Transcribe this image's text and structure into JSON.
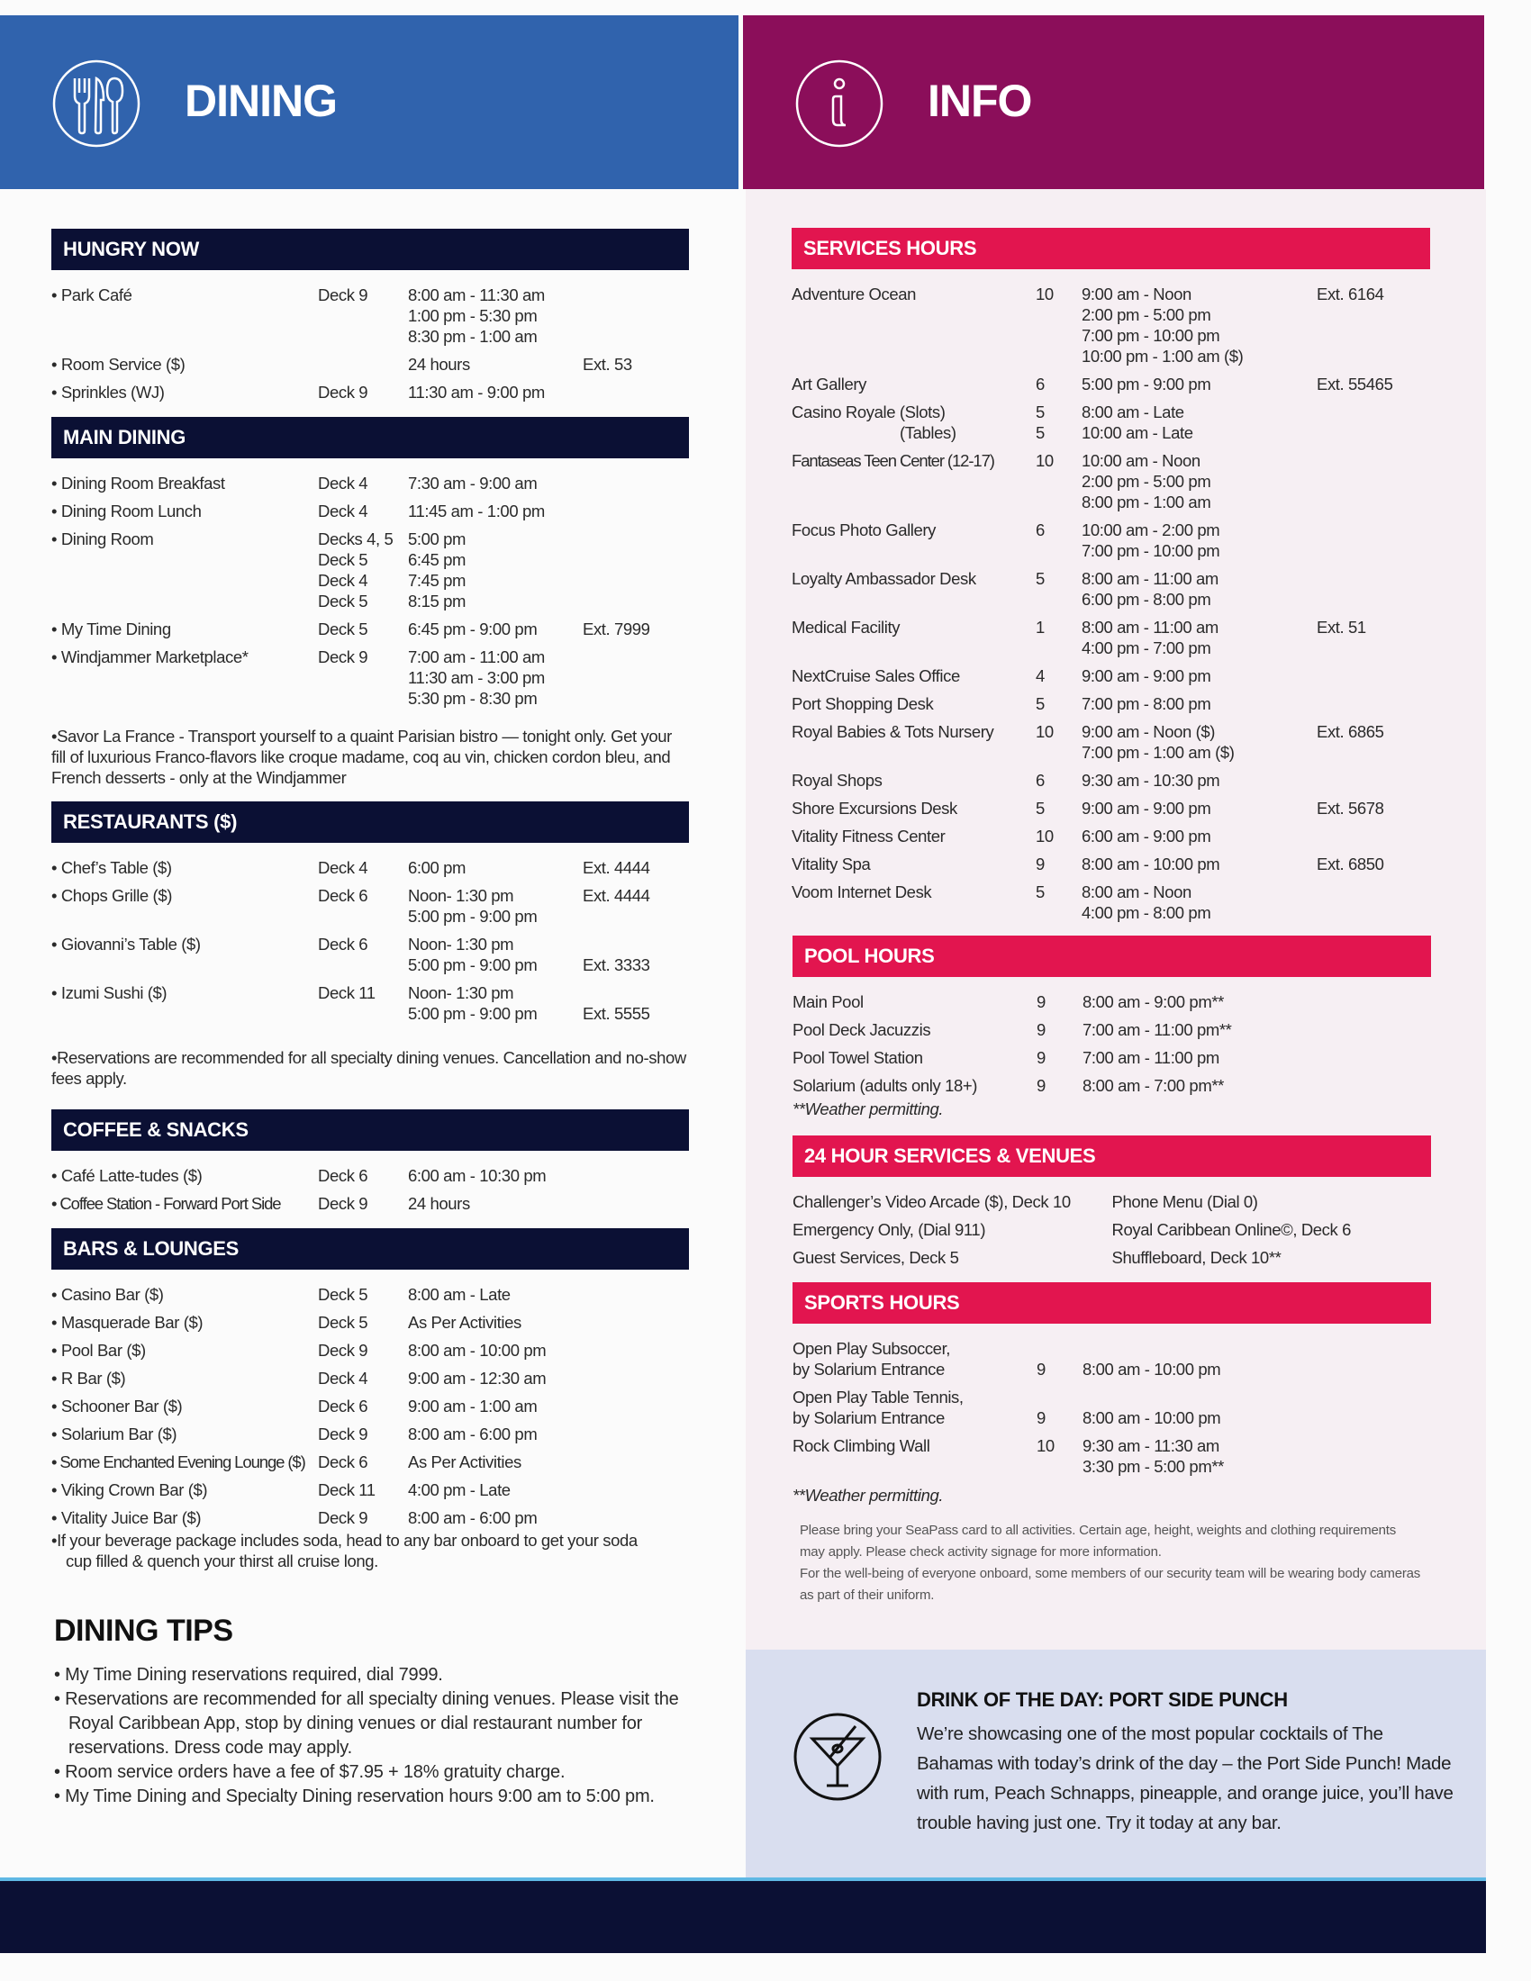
{
  "colors": {
    "dining_header": "#3063ad",
    "info_header": "#8b0e5a",
    "dining_bars": "#0b1034",
    "info_bars": "#e2154f",
    "drink_box": "#d9deef"
  },
  "dining": {
    "title": "DINING",
    "icon": "fork-knife-spoon-icon",
    "hungry_now": {
      "title": "HUNGRY NOW",
      "rows": [
        {
          "name": [
            "Park Café"
          ],
          "deck": [
            "Deck 9"
          ],
          "times": [
            "8:00 am - 11:30 am",
            "1:00 pm - 5:30 pm",
            "8:30 pm - 1:00 am"
          ],
          "ext": []
        },
        {
          "name": [
            "Room Service ($)"
          ],
          "deck": [],
          "times": [
            "24 hours"
          ],
          "ext": [
            "Ext. 53"
          ]
        },
        {
          "name": [
            "Sprinkles (WJ)"
          ],
          "deck": [
            "Deck 9"
          ],
          "times": [
            "11:30 am - 9:00 pm"
          ],
          "ext": []
        }
      ]
    },
    "main_dining": {
      "title": "MAIN DINING",
      "rows": [
        {
          "name": [
            "Dining Room Breakfast"
          ],
          "deck": [
            "Deck 4"
          ],
          "times": [
            "7:30 am - 9:00 am"
          ],
          "ext": []
        },
        {
          "name": [
            "Dining Room Lunch"
          ],
          "deck": [
            "Deck 4"
          ],
          "times": [
            "11:45 am - 1:00 pm"
          ],
          "ext": []
        },
        {
          "name": [
            "Dining Room"
          ],
          "deck": [
            "Decks 4, 5",
            "Deck 5",
            "Deck 4",
            "Deck 5"
          ],
          "times": [
            "5:00 pm",
            "6:45 pm",
            "7:45 pm",
            "8:15 pm"
          ],
          "ext": []
        },
        {
          "name": [
            "My Time Dining"
          ],
          "deck": [
            "Deck 5"
          ],
          "times": [
            "6:45 pm - 9:00 pm"
          ],
          "ext": [
            "Ext. 7999"
          ]
        },
        {
          "name": [
            "Windjammer Marketplace*"
          ],
          "deck": [
            "Deck 9"
          ],
          "times": [
            "7:00 am - 11:00 am",
            "11:30 am - 3:00 pm",
            "5:30 pm - 8:30 pm"
          ],
          "ext": []
        }
      ],
      "note": "Savor La France - Transport yourself to a quaint Parisian bistro — tonight only. Get your fill of luxurious Franco-flavors like croque madame, coq au vin, chicken cordon bleu, and French desserts - only at the Windjammer"
    },
    "restaurants": {
      "title": "RESTAURANTS ($)",
      "rows": [
        {
          "name": [
            "Chef’s Table ($)"
          ],
          "deck": [
            "Deck 4"
          ],
          "times": [
            "6:00 pm"
          ],
          "ext": [
            "Ext. 4444"
          ]
        },
        {
          "name": [
            "Chops Grille ($)"
          ],
          "deck": [
            "Deck 6"
          ],
          "times": [
            "Noon- 1:30 pm",
            "5:00 pm - 9:00 pm"
          ],
          "ext": [
            "Ext. 4444"
          ]
        },
        {
          "name": [
            "Giovanni’s Table ($)"
          ],
          "deck": [
            "Deck 6"
          ],
          "times": [
            "Noon- 1:30 pm",
            "5:00 pm - 9:00 pm"
          ],
          "ext": [
            "",
            "Ext. 3333"
          ]
        },
        {
          "name": [
            "Izumi Sushi ($)"
          ],
          "deck": [
            "Deck 11"
          ],
          "times": [
            "Noon- 1:30 pm",
            "5:00 pm - 9:00 pm"
          ],
          "ext": [
            "",
            "Ext. 5555"
          ]
        }
      ],
      "note": "Reservations are recommended for all specialty dining venues. Cancellation and no-show fees apply."
    },
    "coffee": {
      "title": "COFFEE & SNACKS",
      "rows": [
        {
          "name": [
            "Café Latte-tudes ($)"
          ],
          "deck": [
            "Deck 6"
          ],
          "times": [
            "6:00 am - 10:30 pm"
          ],
          "ext": []
        },
        {
          "name": [
            "Coffee Station - Forward Port Side"
          ],
          "deck": [
            "Deck 9"
          ],
          "times": [
            "24 hours"
          ],
          "ext": []
        }
      ]
    },
    "bars": {
      "title": "BARS & LOUNGES",
      "rows": [
        {
          "name": [
            "Casino Bar ($)"
          ],
          "deck": [
            "Deck 5"
          ],
          "times": [
            "8:00 am - Late"
          ],
          "ext": []
        },
        {
          "name": [
            "Masquerade Bar ($)"
          ],
          "deck": [
            "Deck 5"
          ],
          "times": [
            "As Per Activities"
          ],
          "ext": []
        },
        {
          "name": [
            "Pool Bar ($)"
          ],
          "deck": [
            "Deck 9"
          ],
          "times": [
            "8:00 am - 10:00 pm"
          ],
          "ext": []
        },
        {
          "name": [
            "R Bar ($)"
          ],
          "deck": [
            "Deck 4"
          ],
          "times": [
            "9:00 am - 12:30 am"
          ],
          "ext": []
        },
        {
          "name": [
            "Schooner Bar ($)"
          ],
          "deck": [
            "Deck 6"
          ],
          "times": [
            "9:00 am - 1:00 am"
          ],
          "ext": []
        },
        {
          "name": [
            "Solarium Bar ($)"
          ],
          "deck": [
            "Deck 9"
          ],
          "times": [
            "8:00 am - 6:00 pm"
          ],
          "ext": []
        },
        {
          "name": [
            "Some Enchanted Evening Lounge ($)"
          ],
          "deck": [
            "Deck 6"
          ],
          "times": [
            "As Per Activities"
          ],
          "ext": []
        },
        {
          "name": [
            "Viking Crown Bar ($)"
          ],
          "deck": [
            "Deck 11"
          ],
          "times": [
            "4:00 pm - Late"
          ],
          "ext": []
        },
        {
          "name": [
            "Vitality Juice Bar ($)"
          ],
          "deck": [
            "Deck 9"
          ],
          "times": [
            "8:00 am - 6:00 pm"
          ],
          "ext": []
        }
      ],
      "note": "If your beverage package includes soda, head to any bar onboard to get your soda cup filled & quench your thirst all cruise long."
    },
    "tips": {
      "title": "DINING TIPS",
      "items": [
        "My Time Dining reservations required, dial 7999.",
        "Reservations are recommended for all specialty dining venues. Please visit the Royal Caribbean App, stop by dining venues or dial restaurant number for reservations. Dress code may apply.",
        "Room service orders have a fee of $7.95 + 18% gratuity charge.",
        "My Time Dining and Specialty Dining reservation hours 9:00 am to 5:00 pm."
      ]
    }
  },
  "info": {
    "title": "INFO",
    "icon": "info-icon",
    "services": {
      "title": "SERVICES HOURS",
      "rows": [
        {
          "name": [
            "Adventure Ocean"
          ],
          "deck": [
            "10"
          ],
          "times": [
            "9:00 am - Noon",
            "2:00 pm - 5:00 pm",
            "7:00 pm - 10:00 pm",
            "10:00 pm - 1:00 am ($)"
          ],
          "ext": [
            "Ext. 6164"
          ]
        },
        {
          "name": [
            "Art Gallery"
          ],
          "deck": [
            "6"
          ],
          "times": [
            "5:00 pm - 9:00 pm"
          ],
          "ext": [
            "Ext. 55465"
          ]
        },
        {
          "name": [
            "Casino Royale (Slots)",
            "(Tables)"
          ],
          "deck": [
            "5",
            "5"
          ],
          "times": [
            "8:00 am - Late",
            "10:00 am - Late"
          ],
          "ext": []
        },
        {
          "name": [
            "Fantaseas Teen Center (12-17)"
          ],
          "deck": [
            "10"
          ],
          "times": [
            "10:00 am - Noon",
            "2:00 pm - 5:00 pm",
            "8:00 pm - 1:00 am"
          ],
          "ext": []
        },
        {
          "name": [
            "Focus Photo Gallery"
          ],
          "deck": [
            "6"
          ],
          "times": [
            "10:00 am - 2:00 pm",
            "7:00 pm - 10:00 pm"
          ],
          "ext": []
        },
        {
          "name": [
            "Loyalty Ambassador Desk"
          ],
          "deck": [
            "5"
          ],
          "times": [
            "8:00 am - 11:00 am",
            "6:00 pm - 8:00 pm"
          ],
          "ext": []
        },
        {
          "name": [
            "Medical Facility"
          ],
          "deck": [
            "1"
          ],
          "times": [
            "8:00 am - 11:00 am",
            "4:00 pm - 7:00 pm"
          ],
          "ext": [
            "Ext. 51"
          ]
        },
        {
          "name": [
            "NextCruise Sales Office"
          ],
          "deck": [
            "4"
          ],
          "times": [
            "9:00 am - 9:00 pm"
          ],
          "ext": []
        },
        {
          "name": [
            "Port Shopping Desk"
          ],
          "deck": [
            "5"
          ],
          "times": [
            "7:00 pm - 8:00 pm"
          ],
          "ext": []
        },
        {
          "name": [
            "Royal Babies & Tots Nursery"
          ],
          "deck": [
            "10"
          ],
          "times": [
            "9:00 am - Noon ($)",
            "7:00 pm - 1:00 am ($)"
          ],
          "ext": [
            "Ext. 6865"
          ]
        },
        {
          "name": [
            "Royal Shops"
          ],
          "deck": [
            "6"
          ],
          "times": [
            "9:30 am - 10:30 pm"
          ],
          "ext": []
        },
        {
          "name": [
            "Shore Excursions Desk"
          ],
          "deck": [
            "5"
          ],
          "times": [
            "9:00 am - 9:00 pm"
          ],
          "ext": [
            "Ext. 5678"
          ]
        },
        {
          "name": [
            "Vitality Fitness Center"
          ],
          "deck": [
            "10"
          ],
          "times": [
            "6:00 am - 9:00 pm"
          ],
          "ext": []
        },
        {
          "name": [
            "Vitality Spa"
          ],
          "deck": [
            "9"
          ],
          "times": [
            "8:00 am - 10:00 pm"
          ],
          "ext": [
            "Ext. 6850"
          ]
        },
        {
          "name": [
            "Voom Internet Desk"
          ],
          "deck": [
            "5"
          ],
          "times": [
            "8:00 am - Noon",
            "4:00 pm - 8:00 pm"
          ],
          "ext": []
        }
      ]
    },
    "pool": {
      "title": "POOL HOURS",
      "rows": [
        {
          "name": [
            "Main Pool"
          ],
          "deck": [
            "9"
          ],
          "times": [
            "8:00 am - 9:00 pm**"
          ],
          "ext": []
        },
        {
          "name": [
            "Pool Deck Jacuzzis"
          ],
          "deck": [
            "9"
          ],
          "times": [
            "7:00 am - 11:00 pm**"
          ],
          "ext": []
        },
        {
          "name": [
            "Pool Towel Station"
          ],
          "deck": [
            "9"
          ],
          "times": [
            "7:00 am - 11:00 pm"
          ],
          "ext": []
        },
        {
          "name": [
            "Solarium (adults only 18+)"
          ],
          "deck": [
            "9"
          ],
          "times": [
            "8:00 am - 7:00 pm**"
          ],
          "ext": []
        }
      ],
      "note": "**Weather permitting."
    },
    "venues24": {
      "title": "24 HOUR SERVICES & VENUES",
      "left": [
        "Challenger’s Video Arcade ($), Deck 10",
        "Emergency Only, (Dial 911)",
        "Guest Services, Deck 5"
      ],
      "right": [
        "Phone Menu (Dial 0)",
        "Royal Caribbean Online©, Deck 6",
        "Shuffleboard, Deck 10**"
      ]
    },
    "sports": {
      "title": "SPORTS HOURS",
      "rows": [
        {
          "name": [
            "Open Play Subsoccer,",
            "by Solarium Entrance"
          ],
          "deck": [
            "",
            "9"
          ],
          "times": [
            "",
            "8:00 am - 10:00 pm"
          ],
          "ext": []
        },
        {
          "name": [
            "Open Play Table Tennis,",
            "by Solarium Entrance"
          ],
          "deck": [
            "",
            "9"
          ],
          "times": [
            "",
            "8:00 am - 10:00 pm"
          ],
          "ext": []
        },
        {
          "name": [
            "Rock Climbing Wall"
          ],
          "deck": [
            "10"
          ],
          "times": [
            "9:30 am - 11:30 am",
            "3:30 pm - 5:00 pm**"
          ],
          "ext": []
        }
      ],
      "note": "**Weather permitting.",
      "fine_print": [
        "Please bring your SeaPass card to all activities. Certain age, height, weights and clothing requirements may apply. Please check activity signage for more information.",
        "For the well-being of everyone onboard, some members of our security team will be wearing body cameras as part of their uniform."
      ]
    },
    "drink": {
      "icon": "martini-icon",
      "title": "DRINK OF THE DAY: PORT SIDE PUNCH",
      "body": "We’re showcasing one of the most popular cocktails of The Bahamas with today’s drink of the day – the Port Side Punch! Made with rum, Peach Schnapps, pineapple, and orange juice, you’ll have trouble having just one. Try it today at any bar."
    }
  }
}
